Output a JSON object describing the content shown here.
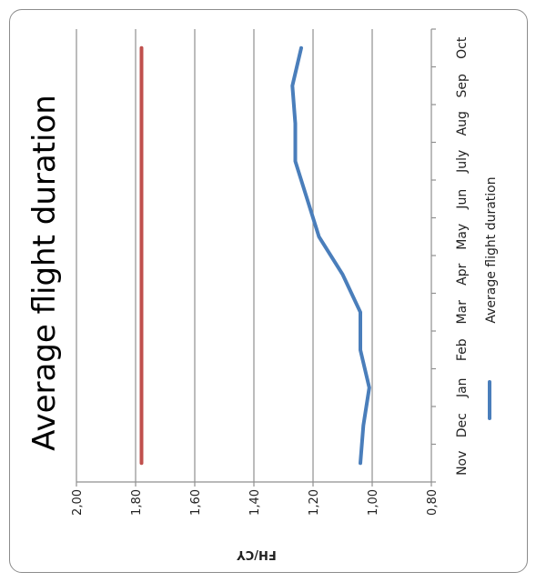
{
  "chart_data": {
    "type": "line",
    "title": "Average flight duration",
    "ylabel": "FH/CY",
    "xlabel": "",
    "ylim": [
      0.8,
      2.0
    ],
    "yticks": [
      "2,00",
      "1,80",
      "1,60",
      "1,40",
      "1,20",
      "1,00",
      "0,80"
    ],
    "categories": [
      "Nov",
      "Dec",
      "Jan",
      "Feb",
      "Mar",
      "Apr",
      "May",
      "Jun",
      "July",
      "Aug",
      "Sep",
      "Oct"
    ],
    "series": [
      {
        "name": "Average flight duration",
        "color": "#4a7ebb",
        "values": [
          1.04,
          1.03,
          1.01,
          1.04,
          1.04,
          1.1,
          1.18,
          1.22,
          1.26,
          1.26,
          1.27,
          1.24
        ]
      },
      {
        "color": "#c0504d",
        "values": [
          1.78,
          1.78,
          1.78,
          1.78,
          1.78,
          1.78,
          1.78,
          1.78,
          1.78,
          1.78,
          1.78,
          1.78
        ]
      }
    ],
    "grid": true,
    "legend": "bottom",
    "orientation": "rotated-90-clockwise"
  }
}
